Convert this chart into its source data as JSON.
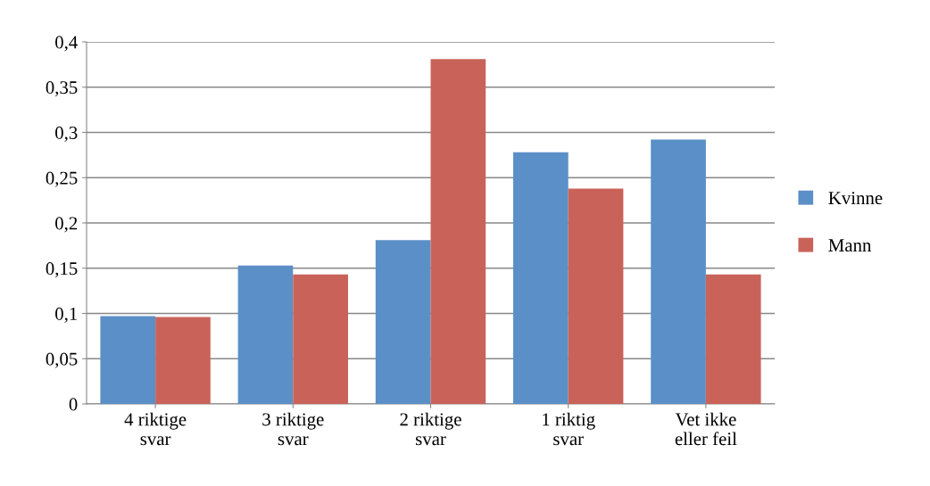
{
  "chart_data": {
    "type": "bar",
    "categories": [
      "4 riktige\nsvar",
      "3 riktige\nsvar",
      "2 riktige\nsvar",
      "1 riktig\nsvar",
      "Vet ikke\neller feil"
    ],
    "series": [
      {
        "name": "Kvinne",
        "color": "#5b8fc7",
        "values": [
          0.097,
          0.153,
          0.181,
          0.278,
          0.292
        ]
      },
      {
        "name": "Mann",
        "color": "#c9635a",
        "values": [
          0.096,
          0.143,
          0.381,
          0.238,
          0.143
        ]
      }
    ],
    "ylim": [
      0,
      0.4
    ],
    "yticks": [
      0,
      {
        "value": 0.05,
        "label": "0,05"
      },
      {
        "value": 0.1,
        "label": "0,1"
      },
      {
        "value": 0.15,
        "label": "0,15"
      },
      {
        "value": 0.2,
        "label": "0,2"
      },
      {
        "value": 0.25,
        "label": "0,25"
      },
      {
        "value": 0.3,
        "label": "0,3"
      },
      {
        "value": 0.35,
        "label": "0,35"
      },
      {
        "value": 0.4,
        "label": "0,4"
      }
    ],
    "grid": "y",
    "legend": "right"
  }
}
